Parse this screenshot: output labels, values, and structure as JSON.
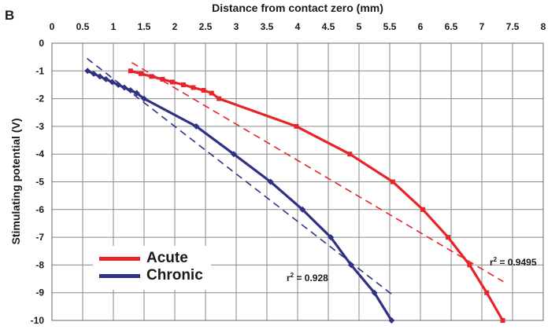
{
  "panel_label": "B",
  "chart_data": {
    "type": "line",
    "xlabel": "Distance from contact zero (mm)",
    "ylabel": "Stimulating potential (V)",
    "xlim": [
      0,
      8
    ],
    "ylim": [
      -10,
      0
    ],
    "x_ticks": [
      "0",
      "0.5",
      "1",
      "1.5",
      "2",
      "2.5",
      "3",
      "3.5",
      "4",
      "4.5",
      "5",
      "5.5",
      "6",
      "6.5",
      "7",
      "7.5",
      "8"
    ],
    "y_ticks": [
      "0",
      "-1",
      "-2",
      "-3",
      "-4",
      "-5",
      "-6",
      "-7",
      "-8",
      "-9",
      "-10"
    ],
    "grid": true,
    "legend_position": "bottom-left",
    "series": [
      {
        "name": "Acute",
        "color": "#e8232a",
        "marker": "square",
        "points": [
          [
            1.28,
            -1.0
          ],
          [
            1.45,
            -1.1
          ],
          [
            1.62,
            -1.2
          ],
          [
            1.8,
            -1.3
          ],
          [
            1.96,
            -1.4
          ],
          [
            2.14,
            -1.5
          ],
          [
            2.3,
            -1.6
          ],
          [
            2.47,
            -1.7
          ],
          [
            2.6,
            -1.8
          ],
          [
            2.72,
            -2.0
          ],
          [
            3.98,
            -3.0
          ],
          [
            4.85,
            -4.0
          ],
          [
            5.55,
            -5.0
          ],
          [
            6.04,
            -6.0
          ],
          [
            6.45,
            -7.0
          ],
          [
            6.8,
            -8.0
          ],
          [
            7.08,
            -9.0
          ],
          [
            7.34,
            -10.0
          ]
        ]
      },
      {
        "name": "Chronic",
        "color": "#2e3283",
        "marker": "diamond",
        "points": [
          [
            0.58,
            -1.0
          ],
          [
            0.68,
            -1.1
          ],
          [
            0.78,
            -1.2
          ],
          [
            0.88,
            -1.3
          ],
          [
            0.98,
            -1.4
          ],
          [
            1.08,
            -1.5
          ],
          [
            1.18,
            -1.6
          ],
          [
            1.28,
            -1.7
          ],
          [
            1.38,
            -1.8
          ],
          [
            1.5,
            -2.0
          ],
          [
            2.35,
            -3.0
          ],
          [
            2.96,
            -4.0
          ],
          [
            3.56,
            -5.0
          ],
          [
            4.08,
            -6.0
          ],
          [
            4.54,
            -7.0
          ],
          [
            4.87,
            -8.0
          ],
          [
            5.25,
            -9.0
          ],
          [
            5.53,
            -10.0
          ]
        ]
      }
    ],
    "fit_lines": [
      {
        "series": "Acute",
        "color": "#e8232a",
        "style": "dashed",
        "x": [
          1.3,
          7.35
        ],
        "y": [
          -0.7,
          -8.6
        ],
        "annotation": "r",
        "annotation_sup": "2",
        "annotation_value": " = 0.9495"
      },
      {
        "series": "Chronic",
        "color": "#2e3283",
        "style": "dashed",
        "x": [
          0.57,
          5.53
        ],
        "y": [
          -0.55,
          -9.05
        ],
        "annotation": "r",
        "annotation_sup": "2",
        "annotation_value": " = 0.928"
      }
    ]
  }
}
